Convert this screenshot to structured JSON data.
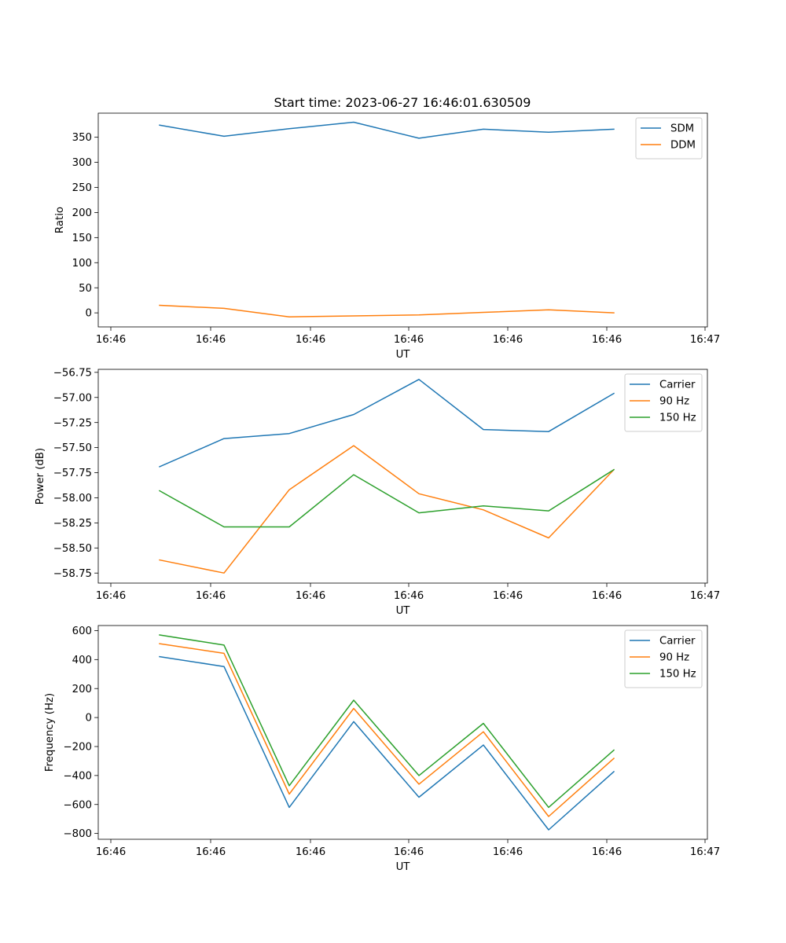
{
  "colors": {
    "blue": "#1f77b4",
    "orange": "#ff7f0e",
    "green": "#2ca02c"
  },
  "chart_data": [
    {
      "type": "line",
      "title": "Start time: 2023-06-27 16:46:01.630509",
      "xlabel": "UT",
      "ylabel": "Ratio",
      "x_tick_labels": [
        "16:46",
        "16:46",
        "16:46",
        "16:46",
        "16:46",
        "16:46",
        "16:47"
      ],
      "y_ticks": [
        0,
        50,
        100,
        150,
        200,
        250,
        300,
        350
      ],
      "ylim": [
        -28,
        398
      ],
      "legend_position": "upper right",
      "series": [
        {
          "name": "SDM",
          "color": "#1f77b4",
          "values": [
            374,
            352,
            367,
            380,
            348,
            366,
            360,
            366
          ]
        },
        {
          "name": "DDM",
          "color": "#ff7f0e",
          "values": [
            15,
            9,
            -8,
            -6,
            -4,
            1,
            6,
            0
          ]
        }
      ]
    },
    {
      "type": "line",
      "title": "",
      "xlabel": "UT",
      "ylabel": "Power (dB)",
      "x_tick_labels": [
        "16:46",
        "16:46",
        "16:46",
        "16:46",
        "16:46",
        "16:46",
        "16:47"
      ],
      "y_ticks": [
        -58.75,
        -58.5,
        -58.25,
        -58.0,
        -57.75,
        -57.5,
        -57.25,
        -57.0,
        -56.75
      ],
      "y_tick_labels": [
        "−58.75",
        "−58.50",
        "−58.25",
        "−58.00",
        "−57.75",
        "−57.50",
        "−57.25",
        "−57.00",
        "−56.75"
      ],
      "ylim": [
        -58.85,
        -56.72
      ],
      "legend_position": "upper right",
      "series": [
        {
          "name": "Carrier",
          "color": "#1f77b4",
          "values": [
            -57.69,
            -57.41,
            -57.36,
            -57.17,
            -56.82,
            -57.32,
            -57.34,
            -56.96
          ]
        },
        {
          "name": "90 Hz",
          "color": "#ff7f0e",
          "values": [
            -58.62,
            -58.75,
            -57.92,
            -57.48,
            -57.96,
            -58.12,
            -58.4,
            -57.72
          ]
        },
        {
          "name": "150 Hz",
          "color": "#2ca02c",
          "values": [
            -57.93,
            -58.29,
            -58.29,
            -57.77,
            -58.15,
            -58.08,
            -58.13,
            -57.72
          ]
        }
      ]
    },
    {
      "type": "line",
      "title": "",
      "xlabel": "UT",
      "ylabel": "Frequency (Hz)",
      "x_tick_labels": [
        "16:46",
        "16:46",
        "16:46",
        "16:46",
        "16:46",
        "16:46",
        "16:47"
      ],
      "y_ticks": [
        -800,
        -600,
        -400,
        -200,
        0,
        200,
        400,
        600
      ],
      "y_tick_labels": [
        "−800",
        "−600",
        "−400",
        "−200",
        "0",
        "200",
        "400",
        "600"
      ],
      "ylim": [
        -840,
        635
      ],
      "legend_position": "upper right",
      "series": [
        {
          "name": "Carrier",
          "color": "#1f77b4",
          "values": [
            420,
            352,
            -620,
            -28,
            -550,
            -190,
            -775,
            -373
          ]
        },
        {
          "name": "90 Hz",
          "color": "#ff7f0e",
          "values": [
            510,
            443,
            -528,
            63,
            -460,
            -98,
            -683,
            -282
          ]
        },
        {
          "name": "150 Hz",
          "color": "#2ca02c",
          "values": [
            570,
            500,
            -470,
            120,
            -400,
            -40,
            -620,
            -225
          ]
        }
      ]
    }
  ]
}
